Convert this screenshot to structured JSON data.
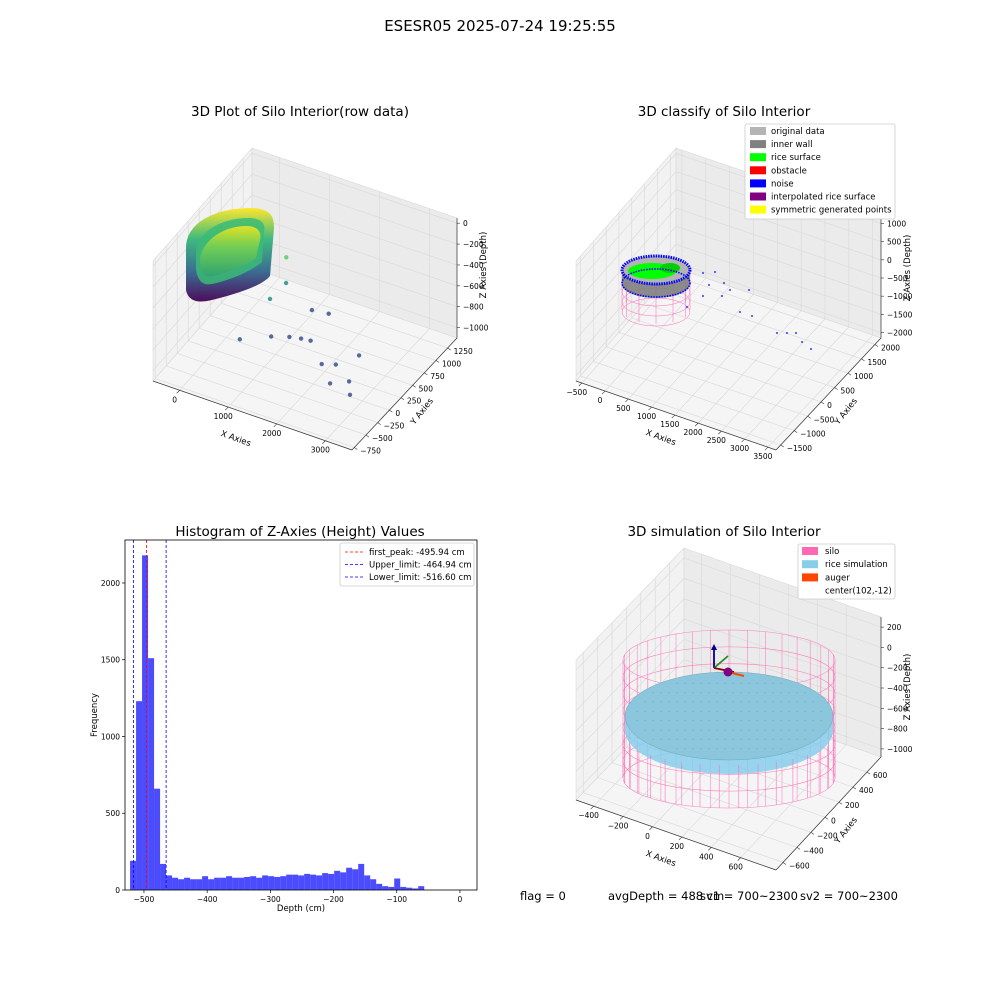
{
  "figure": {
    "title": "ESESR05 2025-07-24 19:25:55"
  },
  "status_line": {
    "flag": "flag = 0",
    "avg_depth": "avgDepth = 488 cm",
    "sv1": "sv1 = 700~2300",
    "sv2": "sv2 = 700~2300"
  },
  "chart_data": [
    {
      "type": "scatter",
      "title": "3D Plot of Silo Interior(row data)",
      "xlabel": "X Axies",
      "ylabel": "Y Axies",
      "zlabel": "Z Axies (Depth)",
      "x_ticks": [
        "0",
        "1000",
        "2000",
        "3000"
      ],
      "y_ticks": [
        "−750",
        "−500",
        "−250",
        "0",
        "250",
        "500",
        "750",
        "1000",
        "1250"
      ],
      "z_ticks": [
        "0",
        "−200",
        "−400",
        "−600",
        "−800",
        "−1000"
      ],
      "xlim": [
        -550,
        3550
      ],
      "ylim": [
        -800,
        1450
      ],
      "zlim": [
        -1100,
        50
      ],
      "colormap": [
        "#440154",
        "#31688e",
        "#35b779",
        "#fde725"
      ],
      "scattered_points": [
        {
          "x": 650,
          "y": -150,
          "z": -820
        },
        {
          "x": 1250,
          "y": -100,
          "z": -720
        },
        {
          "x": 1000,
          "y": 150,
          "z": -520
        },
        {
          "x": 1150,
          "y": 350,
          "z": -440
        },
        {
          "x": 1000,
          "y": 520,
          "z": -300
        },
        {
          "x": 1400,
          "y": 150,
          "z": -820
        },
        {
          "x": 1550,
          "y": 250,
          "z": -860
        },
        {
          "x": 1700,
          "y": 300,
          "z": -880
        },
        {
          "x": 1500,
          "y": 550,
          "z": -740
        },
        {
          "x": 1800,
          "y": 600,
          "z": -750
        },
        {
          "x": 2200,
          "y": 0,
          "z": -880
        },
        {
          "x": 2400,
          "y": 100,
          "z": -900
        },
        {
          "x": 2600,
          "y": -250,
          "z": -880
        },
        {
          "x": 2900,
          "y": -150,
          "z": -860
        },
        {
          "x": 3100,
          "y": -350,
          "z": -860
        },
        {
          "x": 2700,
          "y": 300,
          "z": -860
        }
      ]
    },
    {
      "type": "scatter",
      "title": "3D classify of Silo Interior",
      "xlabel": "X Axies",
      "ylabel": "Y Axies",
      "zlabel": "Z Axies (Depth)",
      "x_ticks": [
        "−500",
        "0",
        "500",
        "1000",
        "1500",
        "2000",
        "2500",
        "3000",
        "3500"
      ],
      "y_ticks": [
        "−1500",
        "−1000",
        "−500",
        "0",
        "500",
        "1000",
        "1500",
        "2000"
      ],
      "z_ticks": [
        "1000",
        "500",
        "0",
        "−500",
        "−1000",
        "−1500",
        "−2000"
      ],
      "legend_position": "top-right",
      "legend": [
        {
          "label": "original data",
          "color": "#b4b4b4"
        },
        {
          "label": "inner wall",
          "color": "#808080"
        },
        {
          "label": "rice surface",
          "color": "#00ff00"
        },
        {
          "label": "obstacle",
          "color": "#ff0000"
        },
        {
          "label": "noise",
          "color": "#0000ff"
        },
        {
          "label": "interpolated rice surface",
          "color": "#800080"
        },
        {
          "label": "symmetric generated points",
          "color": "#ffff00"
        }
      ]
    },
    {
      "type": "bar",
      "title": "Histogram of Z-Axies (Height) Values",
      "xlabel": "Depth (cm)",
      "ylabel": "Frequency",
      "xlim": [
        -530,
        27
      ],
      "ylim": [
        0,
        2280
      ],
      "bar_color": "#0000ff",
      "bar_opacity": 0.7,
      "bin_width": 9.5,
      "bins_start": -522,
      "values": [
        190,
        1230,
        2180,
        1510,
        660,
        170,
        95,
        80,
        70,
        80,
        70,
        70,
        90,
        70,
        80,
        80,
        90,
        80,
        80,
        85,
        90,
        80,
        95,
        90,
        85,
        90,
        100,
        100,
        95,
        105,
        100,
        95,
        110,
        105,
        125,
        115,
        145,
        135,
        170,
        95,
        70,
        40,
        25,
        20,
        75,
        20,
        15,
        10,
        25
      ],
      "x_ticks": [
        "−500",
        "−400",
        "−300",
        "−200",
        "−100",
        "0"
      ],
      "x_tick_values": [
        -500,
        -400,
        -300,
        -200,
        -100,
        0
      ],
      "y_ticks": [
        "0",
        "500",
        "1000",
        "1500",
        "2000"
      ],
      "y_tick_values": [
        0,
        500,
        1000,
        1500,
        2000
      ],
      "legend_position": "top-right",
      "lines": [
        {
          "label": "first_peak: -495.94 cm",
          "value": -495.94,
          "color": "#ff0000"
        },
        {
          "label": "Upper_limit: -464.94 cm",
          "value": -464.94,
          "color": "#0000ff"
        },
        {
          "label": "Lower_limit: -516.60 cm",
          "value": -516.6,
          "color": "#0000ff"
        }
      ]
    },
    {
      "type": "scatter",
      "title": "3D simulation of Silo Interior",
      "xlabel": "X Axies",
      "ylabel": "Y Axies",
      "zlabel": "Z Axies (Depth)",
      "x_ticks": [
        "−400",
        "−200",
        "0",
        "200",
        "400",
        "600"
      ],
      "y_ticks": [
        "−600",
        "−400",
        "−200",
        "0",
        "200",
        "400",
        "600"
      ],
      "z_ticks": [
        "200",
        "0",
        "−200",
        "−400",
        "−600",
        "−800",
        "−1000"
      ],
      "legend_position": "top-right",
      "legend": [
        {
          "label": "silo",
          "color": "#ff69b4"
        },
        {
          "label": "rice simulation",
          "color": "#87ceeb"
        },
        {
          "label": "auger",
          "color": "#ff4500"
        },
        {
          "label": "center(102,-12)",
          "color": ""
        }
      ]
    }
  ]
}
